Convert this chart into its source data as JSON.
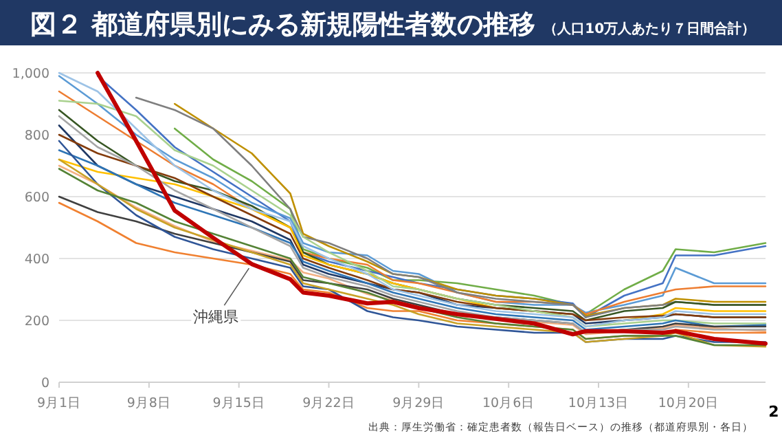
{
  "chart_data": {
    "type": "line",
    "title": "図２ 都道府県別にみる新規陽性者数の推移",
    "subtitle": "（人口10万人あたり７日間合計）",
    "annotations": [
      "出典：厚生労働省：確定患者数（報告日ベース）の推移（都道府県別・各日）",
      "2"
    ],
    "x": [
      "--09-01",
      "--09-04",
      "--09-07",
      "--09-10",
      "--09-13",
      "--09-16",
      "--09-19",
      "--09-20",
      "--09-22",
      "--09-25",
      "--09-27",
      "--09-29",
      "--10-02",
      "--10-05",
      "--10-08",
      "--10-11",
      "--10-12",
      "--10-15",
      "--10-18",
      "--10-19",
      "--10-22",
      "--10-26"
    ],
    "xlim": [
      "--09-01",
      "--10-26"
    ],
    "xticks": [
      {
        "value": "--09-01",
        "label": "9月1日"
      },
      {
        "value": "--09-08",
        "label": "9月8日"
      },
      {
        "value": "--09-15",
        "label": "9月15日"
      },
      {
        "value": "--09-22",
        "label": "9月22日"
      },
      {
        "value": "--09-29",
        "label": "9月29日"
      },
      {
        "value": "--10-06",
        "label": "10月6日"
      },
      {
        "value": "--10-13",
        "label": "10月13日"
      },
      {
        "value": "--10-20",
        "label": "10月20日"
      }
    ],
    "ylim": [
      0,
      1000
    ],
    "yticks": [
      0,
      200,
      400,
      600,
      800,
      {
        "value": 1000,
        "label": "1,000"
      }
    ],
    "grid": "y",
    "series": [
      {
        "color": "#70ad47",
        "values": [
          null,
          null,
          null,
          820,
          720,
          650,
          560,
          430,
          400,
          370,
          330,
          330,
          320,
          300,
          280,
          250,
          220,
          300,
          360,
          430,
          420,
          450
        ]
      },
      {
        "color": "#4472c4",
        "values": [
          null,
          990,
          880,
          760,
          680,
          600,
          520,
          420,
          390,
          360,
          340,
          320,
          300,
          280,
          270,
          255,
          210,
          280,
          320,
          410,
          410,
          440
        ]
      },
      {
        "color": "#5b9bd5",
        "values": [
          990,
          900,
          800,
          720,
          660,
          580,
          530,
          450,
          420,
          410,
          360,
          350,
          290,
          260,
          250,
          250,
          225,
          250,
          280,
          370,
          320,
          320
        ]
      },
      {
        "color": "#ed7d31",
        "values": [
          940,
          860,
          780,
          700,
          640,
          560,
          500,
          420,
          400,
          380,
          330,
          320,
          290,
          260,
          260,
          250,
          220,
          260,
          290,
          300,
          310,
          310
        ]
      },
      {
        "color": "#bf9000",
        "values": [
          null,
          null,
          null,
          900,
          820,
          740,
          610,
          480,
          440,
          390,
          350,
          340,
          300,
          280,
          270,
          250,
          215,
          240,
          250,
          270,
          260,
          260
        ]
      },
      {
        "color": "#7f7f7f",
        "values": [
          null,
          null,
          920,
          880,
          820,
          700,
          560,
          470,
          450,
          400,
          350,
          340,
          290,
          270,
          260,
          250,
          210,
          240,
          250,
          260,
          250,
          250
        ]
      },
      {
        "color": "#375623",
        "values": [
          880,
          780,
          700,
          650,
          620,
          570,
          500,
          420,
          380,
          350,
          320,
          300,
          270,
          250,
          240,
          230,
          200,
          230,
          240,
          260,
          250,
          250
        ]
      },
      {
        "color": "#ffc000",
        "values": [
          720,
          680,
          660,
          640,
          600,
          560,
          500,
          410,
          380,
          350,
          320,
          300,
          270,
          240,
          230,
          210,
          180,
          200,
          220,
          240,
          230,
          230
        ]
      },
      {
        "color": "#1f3864",
        "values": [
          830,
          700,
          640,
          600,
          560,
          520,
          460,
          380,
          350,
          320,
          300,
          290,
          250,
          240,
          230,
          220,
          190,
          200,
          210,
          220,
          210,
          210
        ]
      },
      {
        "color": "#843c0c",
        "values": [
          800,
          740,
          700,
          660,
          600,
          540,
          480,
          400,
          370,
          330,
          300,
          290,
          260,
          240,
          230,
          220,
          200,
          210,
          215,
          220,
          210,
          210
        ]
      },
      {
        "color": "#a9d18e",
        "values": [
          910,
          900,
          860,
          750,
          700,
          620,
          540,
          470,
          420,
          360,
          310,
          300,
          270,
          250,
          230,
          210,
          180,
          190,
          200,
          200,
          190,
          190
        ]
      },
      {
        "color": "#2e75b6",
        "values": [
          750,
          700,
          640,
          580,
          540,
          500,
          450,
          390,
          360,
          320,
          290,
          270,
          240,
          220,
          210,
          200,
          170,
          180,
          190,
          200,
          180,
          185
        ]
      },
      {
        "color": "#f4b183",
        "values": [
          700,
          640,
          565,
          505,
          455,
          425,
          395,
          355,
          335,
          285,
          265,
          245,
          215,
          205,
          195,
          185,
          155,
          165,
          175,
          185,
          175,
          165
        ]
      },
      {
        "color": "#404040",
        "values": [
          600,
          550,
          520,
          480,
          450,
          420,
          390,
          330,
          320,
          300,
          270,
          250,
          220,
          210,
          200,
          190,
          160,
          170,
          180,
          190,
          180,
          180
        ]
      },
      {
        "color": "#f08030",
        "values": [
          580,
          520,
          450,
          420,
          400,
          380,
          350,
          300,
          290,
          240,
          230,
          230,
          200,
          190,
          180,
          170,
          140,
          150,
          150,
          170,
          160,
          160
        ]
      },
      {
        "color": "#2f5597",
        "values": [
          780,
          640,
          540,
          470,
          430,
          400,
          370,
          310,
          300,
          230,
          210,
          200,
          180,
          170,
          160,
          160,
          130,
          140,
          140,
          150,
          130,
          130
        ]
      },
      {
        "color": "#c9a227",
        "values": [
          720,
          640,
          560,
          500,
          460,
          420,
          380,
          320,
          300,
          270,
          250,
          220,
          190,
          180,
          170,
          160,
          130,
          140,
          150,
          160,
          120,
          115
        ]
      },
      {
        "color": "#548235",
        "values": [
          690,
          620,
          580,
          520,
          480,
          440,
          400,
          340,
          320,
          290,
          260,
          240,
          210,
          190,
          180,
          170,
          140,
          150,
          150,
          150,
          120,
          120
        ]
      },
      {
        "color": "#a5a5a5",
        "values": [
          860,
          760,
          700,
          620,
          560,
          500,
          440,
          370,
          340,
          310,
          280,
          260,
          230,
          210,
          200,
          190,
          160,
          170,
          170,
          180,
          170,
          170
        ]
      },
      {
        "color": "#9dc3e6",
        "values": [
          1000,
          940,
          820,
          700,
          620,
          560,
          520,
          440,
          400,
          350,
          300,
          280,
          250,
          230,
          220,
          210,
          180,
          200,
          210,
          230,
          220,
          220
        ]
      },
      {
        "name": "沖縄県",
        "color": "#c00000",
        "values": [
          null,
          1000,
          780,
          555,
          467,
          382,
          333,
          290,
          280,
          255,
          260,
          240,
          220,
          205,
          190,
          155,
          165,
          165,
          160,
          165,
          140,
          125
        ]
      }
    ]
  }
}
